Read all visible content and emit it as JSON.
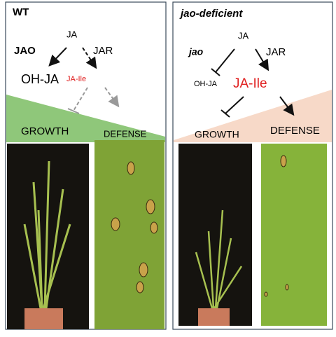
{
  "panels": [
    {
      "title": "WT",
      "ja": "JA",
      "enzyme_oh": "JAO",
      "enzyme_conj": "JAR",
      "product_oh": "OH-JA",
      "product_ile": "JA-Ile",
      "growth": "GROWTH",
      "defense": "DEFENSE"
    },
    {
      "title": "jao-deficient",
      "ja": "JA",
      "enzyme_oh": "jao",
      "enzyme_conj": "JAR",
      "product_oh": "OH-JA",
      "product_ile": "JA-Ile",
      "growth": "GROWTH",
      "defense": "DEFENSE"
    }
  ]
}
